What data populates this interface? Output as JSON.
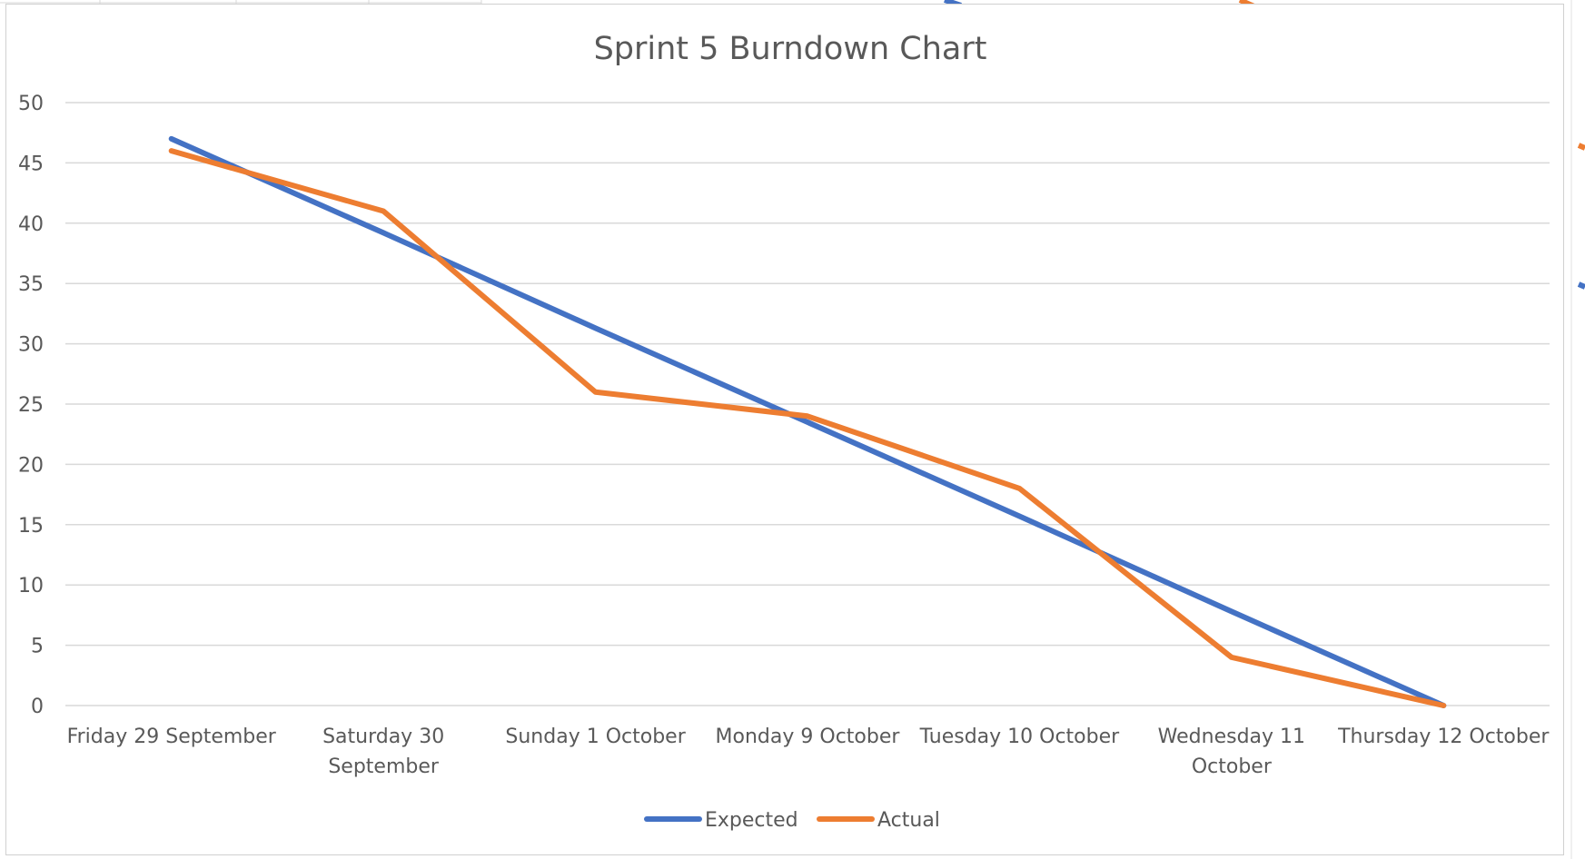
{
  "chart_data": {
    "type": "line",
    "title": "Sprint 5 Burndown Chart",
    "categories": [
      [
        "Friday 29 September"
      ],
      [
        "Saturday 30",
        "September"
      ],
      [
        "Sunday 1 October"
      ],
      [
        "Monday 9 October"
      ],
      [
        "Tuesday 10 October"
      ],
      [
        "Wednesday 11",
        "October"
      ],
      [
        "Thursday 12 October"
      ]
    ],
    "series": [
      {
        "name": "Expected",
        "color": "#4472C4",
        "values": [
          47,
          39.2,
          31.3,
          23.5,
          15.7,
          7.8,
          0
        ]
      },
      {
        "name": "Actual",
        "color": "#ED7D31",
        "values": [
          46,
          41,
          26,
          24,
          18,
          4,
          0
        ]
      }
    ],
    "ylim": [
      0,
      50
    ],
    "yticks": [
      0,
      5,
      10,
      15,
      20,
      25,
      30,
      35,
      40,
      45,
      50
    ],
    "grid": true,
    "legend_position": "bottom"
  }
}
